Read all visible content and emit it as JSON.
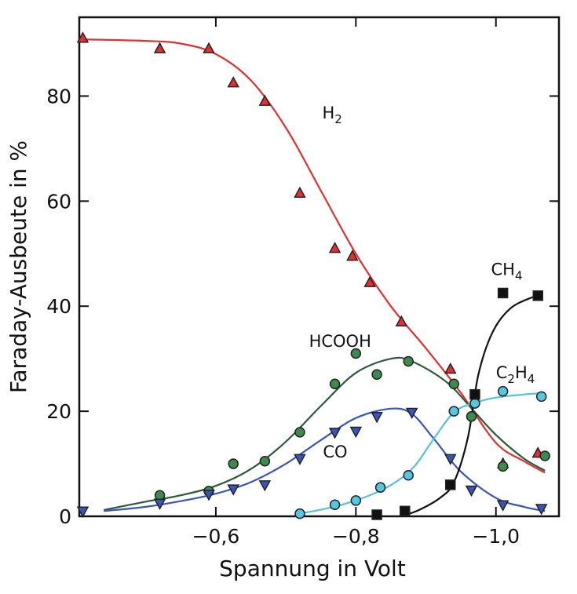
{
  "chart_data": {
    "type": "scatter",
    "xlabel": "Spannung in Volt",
    "ylabel": "Faraday-Ausbeute in %",
    "xlim": [
      -0.405,
      -1.09
    ],
    "ylim": [
      0,
      95
    ],
    "x_ticks": [
      -0.6,
      -0.8,
      -1.0
    ],
    "x_tick_labels": [
      "−0,6",
      "−0,8",
      "−1,0"
    ],
    "y_ticks": [
      0,
      20,
      40,
      60,
      80
    ],
    "y_tick_labels": [
      "0",
      "20",
      "40",
      "60",
      "80"
    ],
    "grid": false,
    "series": [
      {
        "name": "H2",
        "label_main": "H",
        "label_sub": "2",
        "marker": "triangle-up",
        "color": "#e03030",
        "label_pos": [
          -0.752,
          75.7
        ],
        "points": [
          [
            -0.41,
            91
          ],
          [
            -0.52,
            89
          ],
          [
            -0.59,
            89
          ],
          [
            -0.625,
            82.5
          ],
          [
            -0.67,
            79
          ],
          [
            -0.72,
            61.5
          ],
          [
            -0.77,
            51
          ],
          [
            -0.795,
            49.5
          ],
          [
            -0.82,
            44.5
          ],
          [
            -0.865,
            37
          ],
          [
            -0.935,
            28
          ],
          [
            -1.01,
            10
          ],
          [
            -1.06,
            12
          ]
        ],
        "curve": [
          [
            -0.41,
            90.8
          ],
          [
            -0.5,
            90.5
          ],
          [
            -0.55,
            90
          ],
          [
            -0.6,
            88
          ],
          [
            -0.65,
            83
          ],
          [
            -0.7,
            74
          ],
          [
            -0.75,
            62
          ],
          [
            -0.8,
            50
          ],
          [
            -0.85,
            40
          ],
          [
            -0.9,
            32
          ],
          [
            -0.95,
            23.5
          ],
          [
            -1.0,
            14
          ],
          [
            -1.04,
            10.5
          ],
          [
            -1.07,
            8.3
          ]
        ]
      },
      {
        "name": "HCOOH",
        "label_main": "HCOOH",
        "label_sub": "",
        "marker": "circle",
        "color": "#3d8a4f",
        "curve_color": "#2f5a3a",
        "label_pos": [
          -0.733,
          32.3
        ],
        "points": [
          [
            -0.52,
            4
          ],
          [
            -0.59,
            4.8
          ],
          [
            -0.625,
            10
          ],
          [
            -0.67,
            10.5
          ],
          [
            -0.72,
            16
          ],
          [
            -0.77,
            25.2
          ],
          [
            -0.8,
            31
          ],
          [
            -0.83,
            27
          ],
          [
            -0.875,
            29.5
          ],
          [
            -0.94,
            25.2
          ],
          [
            -0.965,
            19
          ],
          [
            -1.01,
            9.5
          ],
          [
            -1.07,
            11.5
          ]
        ],
        "curve": [
          [
            -0.44,
            1.2
          ],
          [
            -0.5,
            2.8
          ],
          [
            -0.55,
            4
          ],
          [
            -0.6,
            5.8
          ],
          [
            -0.65,
            9
          ],
          [
            -0.7,
            14.2
          ],
          [
            -0.75,
            21
          ],
          [
            -0.8,
            27.3
          ],
          [
            -0.85,
            30
          ],
          [
            -0.88,
            29.5
          ],
          [
            -0.93,
            25.5
          ],
          [
            -0.97,
            19.8
          ],
          [
            -1.0,
            15.5
          ],
          [
            -1.04,
            11
          ],
          [
            -1.07,
            8.7
          ]
        ]
      },
      {
        "name": "CO",
        "label_main": "CO",
        "label_sub": "",
        "marker": "triangle-down",
        "color": "#3a55b8",
        "label_pos": [
          -0.753,
          11.2
        ],
        "points": [
          [
            -0.41,
            1
          ],
          [
            -0.52,
            2.5
          ],
          [
            -0.59,
            4.2
          ],
          [
            -0.625,
            5.2
          ],
          [
            -0.67,
            6
          ],
          [
            -0.72,
            11
          ],
          [
            -0.77,
            16
          ],
          [
            -0.8,
            16.2
          ],
          [
            -0.83,
            19
          ],
          [
            -0.88,
            19.8
          ],
          [
            -0.935,
            11
          ],
          [
            -0.965,
            5
          ],
          [
            -1.01,
            2.2
          ],
          [
            -1.065,
            1.5
          ]
        ],
        "curve": [
          [
            -0.44,
            1
          ],
          [
            -0.5,
            1.8
          ],
          [
            -0.55,
            2.9
          ],
          [
            -0.6,
            4.3
          ],
          [
            -0.65,
            6.5
          ],
          [
            -0.7,
            10
          ],
          [
            -0.75,
            14.5
          ],
          [
            -0.8,
            18.7
          ],
          [
            -0.85,
            20.5
          ],
          [
            -0.88,
            19.5
          ],
          [
            -0.91,
            15
          ],
          [
            -0.95,
            8.5
          ],
          [
            -1.0,
            3.5
          ],
          [
            -1.04,
            1.8
          ],
          [
            -1.07,
            1
          ]
        ]
      },
      {
        "name": "C2H4",
        "label_main": "C",
        "label_sub": "2",
        "label_main2": "H",
        "label_sub2": "4",
        "marker": "circle",
        "color": "#55c7e0",
        "curve_color": "#58c2d6",
        "label_pos": [
          -1.0,
          26.3
        ],
        "points": [
          [
            -0.72,
            0.5
          ],
          [
            -0.77,
            2.2
          ],
          [
            -0.8,
            3
          ],
          [
            -0.835,
            5.5
          ],
          [
            -0.875,
            7.8
          ],
          [
            -0.94,
            20
          ],
          [
            -0.97,
            21.5
          ],
          [
            -1.01,
            23.8
          ],
          [
            -1.065,
            22.8
          ]
        ],
        "curve": [
          [
            -0.72,
            0.5
          ],
          [
            -0.78,
            2.2
          ],
          [
            -0.84,
            5.2
          ],
          [
            -0.88,
            9
          ],
          [
            -0.91,
            14.5
          ],
          [
            -0.94,
            19.8
          ],
          [
            -0.97,
            21.6
          ],
          [
            -1.0,
            22.6
          ],
          [
            -1.04,
            23.2
          ],
          [
            -1.07,
            23.5
          ]
        ]
      },
      {
        "name": "CH4",
        "label_main": "CH",
        "label_sub": "4",
        "marker": "square",
        "color": "#111111",
        "label_pos": [
          -0.993,
          45.9
        ],
        "points": [
          [
            -0.83,
            0.3
          ],
          [
            -0.87,
            1
          ],
          [
            -0.935,
            6
          ],
          [
            -0.97,
            23.2
          ],
          [
            -1.01,
            42.5
          ],
          [
            -1.06,
            42
          ]
        ],
        "curve": [
          [
            -0.865,
            0
          ],
          [
            -0.89,
            1.2
          ],
          [
            -0.92,
            3.5
          ],
          [
            -0.94,
            6.5
          ],
          [
            -0.96,
            15
          ],
          [
            -0.975,
            27
          ],
          [
            -0.995,
            35
          ],
          [
            -1.02,
            39.5
          ],
          [
            -1.05,
            41.6
          ],
          [
            -1.065,
            42
          ]
        ]
      }
    ]
  }
}
